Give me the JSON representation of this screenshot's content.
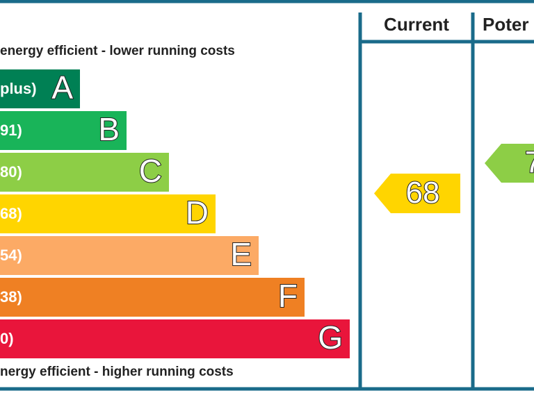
{
  "header": {
    "current": "Current",
    "potential": "Poter"
  },
  "top_note": "energy efficient - lower running costs",
  "bottom_note": "nergy efficient - higher running costs",
  "bands": [
    {
      "label": "plus)",
      "letter": "A",
      "color": "#008054"
    },
    {
      "label": "91)",
      "letter": "B",
      "color": "#19b459"
    },
    {
      "label": "80)",
      "letter": "C",
      "color": "#8dce46"
    },
    {
      "label": "68)",
      "letter": "D",
      "color": "#ffd500"
    },
    {
      "label": "54)",
      "letter": "E",
      "color": "#fcaa65"
    },
    {
      "label": "38)",
      "letter": "F",
      "color": "#ef8023"
    },
    {
      "label": "0)",
      "letter": "G",
      "color": "#e9153b"
    }
  ],
  "current": {
    "value": 68,
    "color": "#ffd500"
  },
  "potential": {
    "value": "7",
    "color": "#8dce46"
  }
}
